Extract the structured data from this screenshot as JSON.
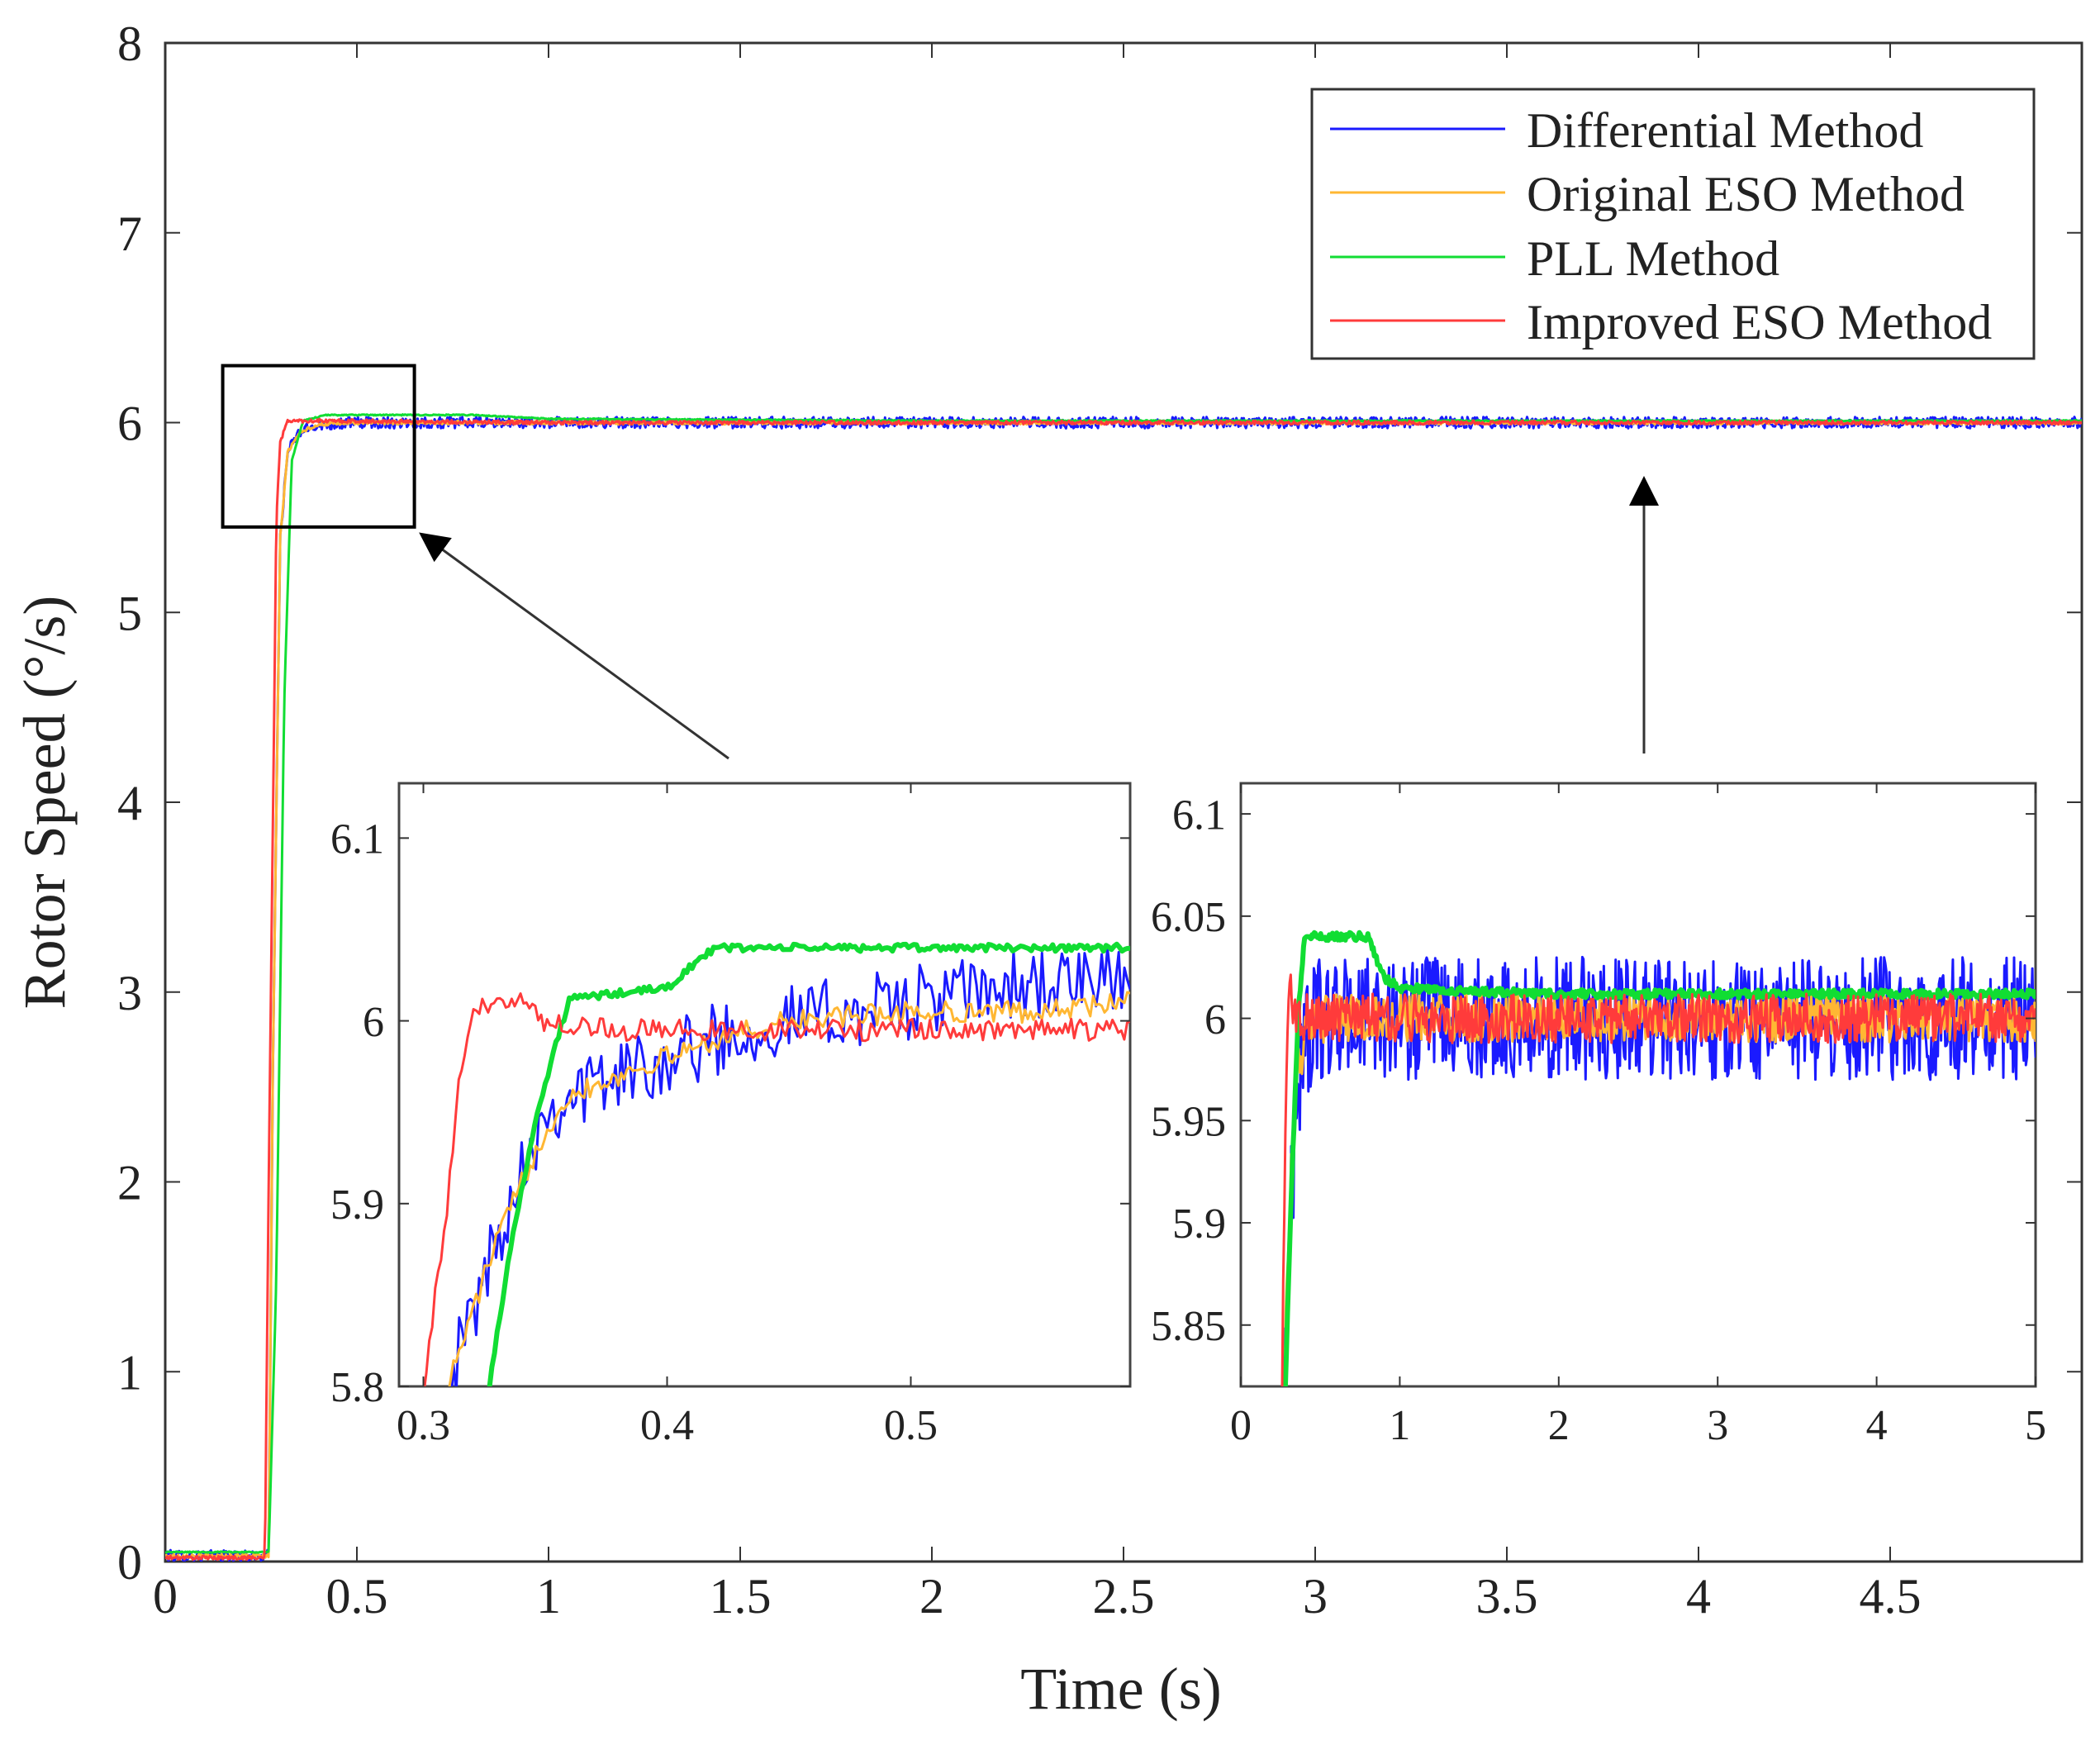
{
  "chart_data": [
    {
      "id": "main",
      "type": "line",
      "title": "",
      "xlabel": "Time (s)",
      "ylabel": "Rotor Speed (°/s)",
      "xlim": [
        0,
        5
      ],
      "ylim": [
        0,
        8
      ],
      "x_ticks": [
        0,
        0.5,
        1,
        1.5,
        2,
        2.5,
        3,
        3.5,
        4,
        4.5
      ],
      "x_tick_labels": [
        "0",
        "0.5",
        "1",
        "1.5",
        "2",
        "2.5",
        "3",
        "3.5",
        "4",
        "4.5"
      ],
      "y_ticks": [
        0,
        1,
        2,
        3,
        4,
        5,
        6,
        7,
        8
      ],
      "y_tick_labels": [
        "0",
        "1",
        "2",
        "3",
        "4",
        "5",
        "6",
        "7",
        "8"
      ],
      "legend": {
        "position": "top-right",
        "entries": [
          "Differential Method",
          "Original ESO Method",
          "PLL Method",
          "Improved ESO Method"
        ]
      },
      "series": [
        {
          "name": "Differential Method",
          "color": "#1a1aff",
          "x": [
            0,
            0.27,
            0.28,
            0.3,
            0.32,
            0.35,
            0.4,
            0.5,
            1.0,
            2.0,
            3.0,
            4.0,
            5.0
          ],
          "y": [
            0.03,
            0.03,
            2.5,
            5.4,
            5.85,
            5.95,
            5.99,
            6.0,
            6.0,
            6.0,
            6.0,
            6.0,
            6.0
          ],
          "noise": 0.03
        },
        {
          "name": "Original ESO Method",
          "color": "#ffb733",
          "x": [
            0,
            0.27,
            0.28,
            0.3,
            0.32,
            0.35,
            0.4,
            0.5,
            1.0,
            2.0,
            3.0,
            4.0,
            5.0
          ],
          "y": [
            0.03,
            0.03,
            2.5,
            5.4,
            5.85,
            5.95,
            5.99,
            6.0,
            6.0,
            6.0,
            6.0,
            6.0,
            6.0
          ],
          "noise": 0.01
        },
        {
          "name": "PLL Method",
          "color": "#11dd33",
          "x": [
            0,
            0.27,
            0.29,
            0.31,
            0.33,
            0.36,
            0.42,
            0.5,
            0.8,
            1.0,
            2.0,
            3.0,
            4.0,
            5.0
          ],
          "y": [
            0.05,
            0.05,
            1.5,
            4.5,
            5.8,
            6.01,
            6.04,
            6.04,
            6.04,
            6.02,
            6.01,
            6.01,
            6.01,
            6.01
          ],
          "noise": 0.003
        },
        {
          "name": "Improved ESO Method",
          "color": "#ff3b3b",
          "x": [
            0,
            0.26,
            0.27,
            0.29,
            0.3,
            0.32,
            1.0,
            2.0,
            3.0,
            4.0,
            5.0
          ],
          "y": [
            0.02,
            0.02,
            2.0,
            5.5,
            5.9,
            6.01,
            6.0,
            6.0,
            6.0,
            6.0,
            6.0
          ],
          "noise": 0.01
        }
      ],
      "zoom_box": {
        "x": [
          0.15,
          0.65
        ],
        "y": [
          5.45,
          6.3
        ]
      }
    },
    {
      "id": "inset_left",
      "type": "line",
      "title": "",
      "xlabel": "",
      "ylabel": "",
      "xlim": [
        0.29,
        0.59
      ],
      "ylim": [
        5.8,
        6.13
      ],
      "x_ticks": [
        0.3,
        0.4,
        0.5
      ],
      "x_tick_labels": [
        "0.3",
        "0.4",
        "0.5"
      ],
      "y_ticks": [
        5.8,
        5.9,
        6.0,
        6.1
      ],
      "y_tick_labels": [
        "5.8",
        "5.9",
        "6",
        "6.1"
      ],
      "series": [
        {
          "name": "Differential Method",
          "color": "#1a1aff",
          "x": [
            0.31,
            0.32,
            0.33,
            0.34,
            0.35,
            0.36,
            0.38,
            0.4,
            0.42,
            0.45,
            0.5,
            0.55,
            0.59
          ],
          "y": [
            5.8,
            5.84,
            5.88,
            5.92,
            5.95,
            5.96,
            5.97,
            5.98,
            5.99,
            6.0,
            6.01,
            6.02,
            6.02
          ],
          "noise": 0.02
        },
        {
          "name": "Original ESO Method",
          "color": "#ffb733",
          "x": [
            0.31,
            0.32,
            0.33,
            0.34,
            0.35,
            0.36,
            0.38,
            0.4,
            0.42,
            0.45,
            0.5,
            0.55,
            0.59
          ],
          "y": [
            5.8,
            5.84,
            5.88,
            5.91,
            5.94,
            5.96,
            5.97,
            5.98,
            5.99,
            6.0,
            6.005,
            6.005,
            6.01
          ],
          "noise": 0.006
        },
        {
          "name": "PLL Method",
          "color": "#11dd33",
          "x": [
            0.327,
            0.335,
            0.345,
            0.355,
            0.36,
            0.4,
            0.41,
            0.42,
            0.5,
            0.59
          ],
          "y": [
            5.8,
            5.87,
            5.94,
            5.99,
            6.012,
            6.018,
            6.03,
            6.04,
            6.04,
            6.04
          ],
          "noise": 0.002
        },
        {
          "name": "Improved ESO Method",
          "color": "#ff3b3b",
          "x": [
            0.3,
            0.31,
            0.315,
            0.32,
            0.33,
            0.34,
            0.35,
            0.38,
            0.4,
            0.45,
            0.5,
            0.55,
            0.59
          ],
          "y": [
            5.8,
            5.9,
            5.97,
            6.0,
            6.015,
            6.01,
            6.0,
            5.995,
            5.995,
            5.995,
            5.995,
            5.995,
            5.995
          ],
          "noise": 0.006
        }
      ]
    },
    {
      "id": "inset_right",
      "type": "line",
      "title": "",
      "xlabel": "",
      "ylabel": "",
      "xlim": [
        0,
        5
      ],
      "ylim": [
        5.82,
        6.115
      ],
      "x_ticks": [
        0,
        1,
        2,
        3,
        4,
        5
      ],
      "x_tick_labels": [
        "0",
        "1",
        "2",
        "3",
        "4",
        "5"
      ],
      "y_ticks": [
        5.85,
        5.9,
        5.95,
        6.0,
        6.05,
        6.1
      ],
      "y_tick_labels": [
        "5.85",
        "5.9",
        "5.95",
        "6",
        "6.05",
        "6.1"
      ],
      "series": [
        {
          "name": "Differential Method",
          "color": "#1a1aff",
          "x": [
            0.27,
            0.3,
            0.35,
            0.4,
            0.5,
            1.0,
            2.0,
            3.0,
            4.0,
            5.0
          ],
          "y": [
            5.82,
            5.88,
            5.96,
            5.99,
            6.0,
            6.0,
            6.0,
            6.0,
            6.0,
            6.0
          ],
          "noise": 0.03
        },
        {
          "name": "Original ESO Method",
          "color": "#ffb733",
          "x": [
            0.27,
            0.3,
            0.35,
            0.4,
            0.5,
            1.0,
            2.0,
            3.0,
            4.0,
            5.0
          ],
          "y": [
            5.82,
            5.9,
            5.97,
            5.99,
            6.0,
            6.0,
            6.0,
            6.0,
            6.0,
            6.0
          ],
          "noise": 0.012
        },
        {
          "name": "PLL Method",
          "color": "#11dd33",
          "x": [
            0.28,
            0.32,
            0.36,
            0.4,
            0.6,
            0.8,
            0.9,
            1.0,
            1.5,
            2.0,
            3.0,
            4.0,
            5.0
          ],
          "y": [
            5.82,
            5.92,
            6.0,
            6.04,
            6.04,
            6.04,
            6.02,
            6.015,
            6.013,
            6.012,
            6.012,
            6.012,
            6.012
          ],
          "noise": 0.002
        },
        {
          "name": "Improved ESO Method",
          "color": "#ff3b3b",
          "x": [
            0.26,
            0.28,
            0.3,
            0.35,
            0.5,
            1.0,
            2.0,
            3.0,
            4.0,
            5.0
          ],
          "y": [
            5.82,
            5.95,
            6.015,
            6.0,
            6.0,
            6.0,
            6.0,
            6.0,
            6.0,
            6.0
          ],
          "noise": 0.012
        }
      ]
    }
  ]
}
